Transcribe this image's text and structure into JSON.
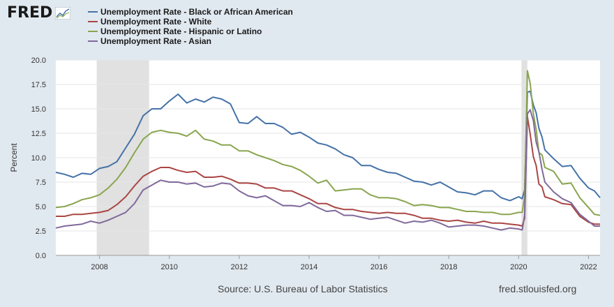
{
  "header": {
    "logo_text": "FRED",
    "logo_icon": "chart-line-icon"
  },
  "chart_data": {
    "type": "line",
    "title": "",
    "xlabel": "",
    "ylabel": "Percent",
    "ylim": [
      0,
      20
    ],
    "xlim": [
      2006.75,
      2022.33
    ],
    "yticks": [
      "0.0",
      "2.5",
      "5.0",
      "7.5",
      "10.0",
      "12.5",
      "15.0",
      "17.5",
      "20.0"
    ],
    "xticks": [
      "2008",
      "2010",
      "2012",
      "2014",
      "2016",
      "2018",
      "2020",
      "2022"
    ],
    "recessions": [
      [
        2007.92,
        2009.42
      ],
      [
        2020.08,
        2020.25
      ]
    ],
    "series": [
      {
        "name": "Unemployment Rate - Black or African American",
        "color": "#4572a7",
        "points": [
          [
            2006.75,
            8.5
          ],
          [
            2007.0,
            8.3
          ],
          [
            2007.25,
            8.0
          ],
          [
            2007.5,
            8.4
          ],
          [
            2007.75,
            8.3
          ],
          [
            2008.0,
            8.9
          ],
          [
            2008.25,
            9.1
          ],
          [
            2008.5,
            9.6
          ],
          [
            2008.75,
            11.0
          ],
          [
            2009.0,
            12.4
          ],
          [
            2009.25,
            14.3
          ],
          [
            2009.5,
            15.0
          ],
          [
            2009.75,
            15.0
          ],
          [
            2010.0,
            15.8
          ],
          [
            2010.25,
            16.5
          ],
          [
            2010.5,
            15.6
          ],
          [
            2010.75,
            16.0
          ],
          [
            2011.0,
            15.7
          ],
          [
            2011.25,
            16.2
          ],
          [
            2011.5,
            16.0
          ],
          [
            2011.75,
            15.5
          ],
          [
            2012.0,
            13.6
          ],
          [
            2012.25,
            13.5
          ],
          [
            2012.5,
            14.2
          ],
          [
            2012.75,
            13.5
          ],
          [
            2013.0,
            13.5
          ],
          [
            2013.25,
            13.1
          ],
          [
            2013.5,
            12.4
          ],
          [
            2013.75,
            12.6
          ],
          [
            2014.0,
            12.1
          ],
          [
            2014.25,
            11.5
          ],
          [
            2014.5,
            11.3
          ],
          [
            2014.75,
            10.9
          ],
          [
            2015.0,
            10.3
          ],
          [
            2015.25,
            10.0
          ],
          [
            2015.5,
            9.2
          ],
          [
            2015.75,
            9.2
          ],
          [
            2016.0,
            8.8
          ],
          [
            2016.25,
            8.5
          ],
          [
            2016.5,
            8.4
          ],
          [
            2016.75,
            8.0
          ],
          [
            2017.0,
            7.6
          ],
          [
            2017.25,
            7.5
          ],
          [
            2017.5,
            7.2
          ],
          [
            2017.75,
            7.5
          ],
          [
            2018.0,
            7.0
          ],
          [
            2018.25,
            6.5
          ],
          [
            2018.5,
            6.4
          ],
          [
            2018.75,
            6.2
          ],
          [
            2019.0,
            6.6
          ],
          [
            2019.25,
            6.6
          ],
          [
            2019.5,
            5.9
          ],
          [
            2019.75,
            5.6
          ],
          [
            2020.0,
            6.0
          ],
          [
            2020.1,
            5.8
          ],
          [
            2020.17,
            6.7
          ],
          [
            2020.25,
            16.7
          ],
          [
            2020.33,
            16.8
          ],
          [
            2020.42,
            15.4
          ],
          [
            2020.5,
            14.6
          ],
          [
            2020.58,
            13.0
          ],
          [
            2020.67,
            12.1
          ],
          [
            2020.75,
            10.8
          ],
          [
            2021.0,
            9.9
          ],
          [
            2021.25,
            9.1
          ],
          [
            2021.5,
            9.2
          ],
          [
            2021.75,
            7.9
          ],
          [
            2022.0,
            6.9
          ],
          [
            2022.17,
            6.6
          ],
          [
            2022.33,
            5.9
          ]
        ]
      },
      {
        "name": "Unemployment Rate - White",
        "color": "#aa4643",
        "points": [
          [
            2006.75,
            4.0
          ],
          [
            2007.0,
            4.0
          ],
          [
            2007.25,
            4.2
          ],
          [
            2007.5,
            4.2
          ],
          [
            2007.75,
            4.3
          ],
          [
            2008.0,
            4.4
          ],
          [
            2008.25,
            4.6
          ],
          [
            2008.5,
            5.2
          ],
          [
            2008.75,
            6.0
          ],
          [
            2009.0,
            7.1
          ],
          [
            2009.25,
            8.1
          ],
          [
            2009.5,
            8.6
          ],
          [
            2009.75,
            9.0
          ],
          [
            2010.0,
            9.0
          ],
          [
            2010.25,
            8.7
          ],
          [
            2010.5,
            8.5
          ],
          [
            2010.75,
            8.6
          ],
          [
            2011.0,
            8.0
          ],
          [
            2011.25,
            8.0
          ],
          [
            2011.5,
            8.1
          ],
          [
            2011.75,
            7.8
          ],
          [
            2012.0,
            7.4
          ],
          [
            2012.25,
            7.4
          ],
          [
            2012.5,
            7.3
          ],
          [
            2012.75,
            6.9
          ],
          [
            2013.0,
            6.9
          ],
          [
            2013.25,
            6.6
          ],
          [
            2013.5,
            6.6
          ],
          [
            2013.75,
            6.2
          ],
          [
            2014.0,
            5.8
          ],
          [
            2014.25,
            5.3
          ],
          [
            2014.5,
            5.3
          ],
          [
            2014.75,
            4.9
          ],
          [
            2015.0,
            4.7
          ],
          [
            2015.25,
            4.7
          ],
          [
            2015.5,
            4.5
          ],
          [
            2015.75,
            4.4
          ],
          [
            2016.0,
            4.3
          ],
          [
            2016.25,
            4.4
          ],
          [
            2016.5,
            4.3
          ],
          [
            2016.75,
            4.3
          ],
          [
            2017.0,
            4.1
          ],
          [
            2017.25,
            3.8
          ],
          [
            2017.5,
            3.8
          ],
          [
            2017.75,
            3.6
          ],
          [
            2018.0,
            3.5
          ],
          [
            2018.25,
            3.6
          ],
          [
            2018.5,
            3.4
          ],
          [
            2018.75,
            3.3
          ],
          [
            2019.0,
            3.5
          ],
          [
            2019.25,
            3.3
          ],
          [
            2019.5,
            3.3
          ],
          [
            2019.75,
            3.2
          ],
          [
            2020.0,
            3.1
          ],
          [
            2020.1,
            3.0
          ],
          [
            2020.17,
            3.8
          ],
          [
            2020.25,
            14.2
          ],
          [
            2020.33,
            12.4
          ],
          [
            2020.42,
            10.1
          ],
          [
            2020.5,
            9.2
          ],
          [
            2020.58,
            7.3
          ],
          [
            2020.67,
            7.0
          ],
          [
            2020.75,
            6.0
          ],
          [
            2021.0,
            5.7
          ],
          [
            2021.25,
            5.3
          ],
          [
            2021.5,
            5.2
          ],
          [
            2021.75,
            4.0
          ],
          [
            2022.0,
            3.4
          ],
          [
            2022.17,
            3.2
          ],
          [
            2022.33,
            3.2
          ]
        ]
      },
      {
        "name": "Unemployment Rate - Hispanic or Latino",
        "color": "#89a54e",
        "points": [
          [
            2006.75,
            4.9
          ],
          [
            2007.0,
            5.0
          ],
          [
            2007.25,
            5.3
          ],
          [
            2007.5,
            5.7
          ],
          [
            2007.75,
            5.9
          ],
          [
            2008.0,
            6.2
          ],
          [
            2008.25,
            6.9
          ],
          [
            2008.5,
            7.8
          ],
          [
            2008.75,
            9.0
          ],
          [
            2009.0,
            10.5
          ],
          [
            2009.25,
            11.9
          ],
          [
            2009.5,
            12.6
          ],
          [
            2009.75,
            12.8
          ],
          [
            2010.0,
            12.6
          ],
          [
            2010.25,
            12.5
          ],
          [
            2010.5,
            12.2
          ],
          [
            2010.75,
            12.8
          ],
          [
            2011.0,
            11.9
          ],
          [
            2011.25,
            11.7
          ],
          [
            2011.5,
            11.3
          ],
          [
            2011.75,
            11.3
          ],
          [
            2012.0,
            10.7
          ],
          [
            2012.25,
            10.7
          ],
          [
            2012.5,
            10.3
          ],
          [
            2012.75,
            10.0
          ],
          [
            2013.0,
            9.7
          ],
          [
            2013.25,
            9.3
          ],
          [
            2013.5,
            9.1
          ],
          [
            2013.75,
            8.7
          ],
          [
            2014.0,
            8.1
          ],
          [
            2014.25,
            7.4
          ],
          [
            2014.5,
            7.7
          ],
          [
            2014.75,
            6.6
          ],
          [
            2015.0,
            6.7
          ],
          [
            2015.25,
            6.8
          ],
          [
            2015.5,
            6.8
          ],
          [
            2015.75,
            6.2
          ],
          [
            2016.0,
            5.9
          ],
          [
            2016.25,
            5.9
          ],
          [
            2016.5,
            5.8
          ],
          [
            2016.75,
            5.5
          ],
          [
            2017.0,
            5.1
          ],
          [
            2017.25,
            5.2
          ],
          [
            2017.5,
            5.1
          ],
          [
            2017.75,
            4.9
          ],
          [
            2018.0,
            4.9
          ],
          [
            2018.25,
            4.7
          ],
          [
            2018.5,
            4.5
          ],
          [
            2018.75,
            4.5
          ],
          [
            2019.0,
            4.4
          ],
          [
            2019.25,
            4.4
          ],
          [
            2019.5,
            4.2
          ],
          [
            2019.75,
            4.2
          ],
          [
            2020.0,
            4.4
          ],
          [
            2020.1,
            4.4
          ],
          [
            2020.17,
            6.0
          ],
          [
            2020.25,
            18.9
          ],
          [
            2020.33,
            17.6
          ],
          [
            2020.42,
            14.5
          ],
          [
            2020.5,
            12.9
          ],
          [
            2020.58,
            10.5
          ],
          [
            2020.67,
            10.3
          ],
          [
            2020.75,
            9.0
          ],
          [
            2021.0,
            8.6
          ],
          [
            2021.25,
            7.3
          ],
          [
            2021.5,
            7.4
          ],
          [
            2021.75,
            5.9
          ],
          [
            2022.0,
            4.9
          ],
          [
            2022.17,
            4.2
          ],
          [
            2022.33,
            4.1
          ]
        ]
      },
      {
        "name": "Unemployment Rate - Asian",
        "color": "#80699b",
        "points": [
          [
            2006.75,
            2.8
          ],
          [
            2007.0,
            3.0
          ],
          [
            2007.25,
            3.1
          ],
          [
            2007.5,
            3.2
          ],
          [
            2007.75,
            3.5
          ],
          [
            2008.0,
            3.3
          ],
          [
            2008.25,
            3.6
          ],
          [
            2008.5,
            4.0
          ],
          [
            2008.75,
            4.4
          ],
          [
            2009.0,
            5.3
          ],
          [
            2009.25,
            6.7
          ],
          [
            2009.5,
            7.2
          ],
          [
            2009.75,
            7.7
          ],
          [
            2010.0,
            7.5
          ],
          [
            2010.25,
            7.5
          ],
          [
            2010.5,
            7.3
          ],
          [
            2010.75,
            7.4
          ],
          [
            2011.0,
            7.0
          ],
          [
            2011.25,
            7.1
          ],
          [
            2011.5,
            7.4
          ],
          [
            2011.75,
            7.3
          ],
          [
            2012.0,
            6.6
          ],
          [
            2012.25,
            6.1
          ],
          [
            2012.5,
            5.9
          ],
          [
            2012.75,
            6.1
          ],
          [
            2013.0,
            5.6
          ],
          [
            2013.25,
            5.1
          ],
          [
            2013.5,
            5.1
          ],
          [
            2013.75,
            5.0
          ],
          [
            2014.0,
            5.4
          ],
          [
            2014.25,
            4.9
          ],
          [
            2014.5,
            4.5
          ],
          [
            2014.75,
            4.6
          ],
          [
            2015.0,
            4.1
          ],
          [
            2015.25,
            4.1
          ],
          [
            2015.5,
            3.9
          ],
          [
            2015.75,
            3.7
          ],
          [
            2016.0,
            3.8
          ],
          [
            2016.25,
            3.9
          ],
          [
            2016.5,
            3.6
          ],
          [
            2016.75,
            3.3
          ],
          [
            2017.0,
            3.5
          ],
          [
            2017.25,
            3.4
          ],
          [
            2017.5,
            3.6
          ],
          [
            2017.75,
            3.3
          ],
          [
            2018.0,
            2.9
          ],
          [
            2018.25,
            3.0
          ],
          [
            2018.5,
            3.1
          ],
          [
            2018.75,
            3.1
          ],
          [
            2019.0,
            3.0
          ],
          [
            2019.25,
            2.8
          ],
          [
            2019.5,
            2.6
          ],
          [
            2019.75,
            2.8
          ],
          [
            2020.0,
            2.7
          ],
          [
            2020.1,
            2.6
          ],
          [
            2020.17,
            4.1
          ],
          [
            2020.25,
            14.5
          ],
          [
            2020.33,
            14.9
          ],
          [
            2020.42,
            13.8
          ],
          [
            2020.5,
            11.6
          ],
          [
            2020.58,
            10.6
          ],
          [
            2020.67,
            8.8
          ],
          [
            2020.75,
            7.5
          ],
          [
            2021.0,
            6.5
          ],
          [
            2021.25,
            5.8
          ],
          [
            2021.5,
            5.4
          ],
          [
            2021.75,
            4.2
          ],
          [
            2022.0,
            3.5
          ],
          [
            2022.17,
            3.0
          ],
          [
            2022.33,
            3.0
          ]
        ]
      }
    ]
  },
  "footer": {
    "source": "Source: U.S. Bureau of Labor Statistics",
    "url": "fred.stlouisfed.org"
  }
}
